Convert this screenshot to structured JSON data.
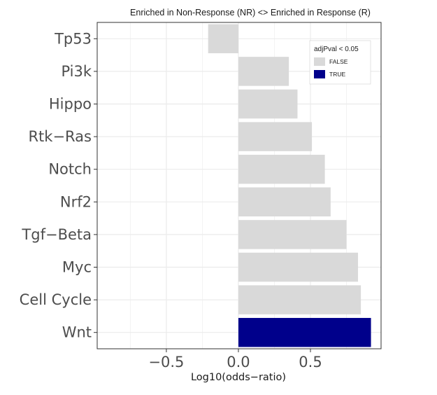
{
  "chart_data": {
    "type": "bar",
    "orientation": "horizontal",
    "title": "Enriched in Non-Response (NR)  <> Enriched in Response (R)",
    "xlabel": "Log10(odds−ratio)",
    "ylabel": "",
    "xlim": [
      -0.98,
      0.99
    ],
    "xticks": [
      -0.5,
      0.0,
      0.5
    ],
    "xtick_labels": [
      "−0.5",
      "0.0",
      "0.5"
    ],
    "grid": true,
    "categories": [
      "Tp53",
      "Pi3k",
      "Hippo",
      "Rtk−Ras",
      "Notch",
      "Nrf2",
      "Tgf−Beta",
      "Myc",
      "Cell Cycle",
      "Wnt"
    ],
    "values": [
      -0.21,
      0.35,
      0.41,
      0.51,
      0.6,
      0.64,
      0.75,
      0.83,
      0.85,
      0.92
    ],
    "significant": [
      false,
      false,
      false,
      false,
      false,
      false,
      false,
      false,
      false,
      true
    ],
    "legend": {
      "title": "adjPval < 0.05",
      "position": "top-right",
      "items": [
        {
          "label": "FALSE",
          "color": "#d9d9d9"
        },
        {
          "label": "TRUE",
          "color": "#00008b"
        }
      ]
    },
    "colors": {
      "false": "#d9d9d9",
      "true": "#00008b",
      "grid": "#ebebeb"
    }
  }
}
